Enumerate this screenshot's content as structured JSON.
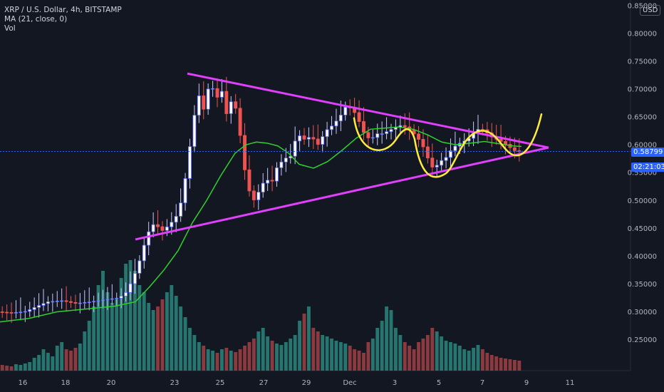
{
  "legend": {
    "title": "XRP / U.S. Dollar, 4h, BITSTAMP",
    "ma": "MA (21, close, 0)",
    "vol": "Vol"
  },
  "currency": "USD",
  "price_label": "0.58799",
  "countdown": "02:21:03",
  "chart_data": {
    "type": "candlestick",
    "symbol": "XRP / U.S. Dollar",
    "interval": "4h",
    "exchange": "BITSTAMP",
    "y_axis": {
      "ticks": [
        "0.85000",
        "0.80000",
        "0.75000",
        "0.70000",
        "0.65000",
        "0.60000",
        "0.55000",
        "0.50000",
        "0.45000",
        "0.40000",
        "0.35000",
        "0.30000",
        "0.25000"
      ],
      "range": [
        0.22,
        0.855
      ]
    },
    "x_axis": {
      "ticks": [
        "16",
        "18",
        "20",
        "23",
        "25",
        "27",
        "29",
        "Dec",
        "3",
        "5",
        "7",
        "9",
        "11"
      ]
    },
    "price_path": [
      [
        0,
        0.3
      ],
      [
        20,
        0.298
      ],
      [
        40,
        0.301
      ],
      [
        55,
        0.31
      ],
      [
        70,
        0.318
      ],
      [
        90,
        0.32
      ],
      [
        110,
        0.315
      ],
      [
        130,
        0.318
      ],
      [
        150,
        0.322
      ],
      [
        170,
        0.325
      ],
      [
        180,
        0.335
      ],
      [
        190,
        0.36
      ],
      [
        200,
        0.395
      ],
      [
        210,
        0.44
      ],
      [
        220,
        0.46
      ],
      [
        230,
        0.445
      ],
      [
        240,
        0.455
      ],
      [
        250,
        0.47
      ],
      [
        258,
        0.5
      ],
      [
        266,
        0.56
      ],
      [
        274,
        0.64
      ],
      [
        282,
        0.69
      ],
      [
        290,
        0.66
      ],
      [
        298,
        0.72
      ],
      [
        306,
        0.68
      ],
      [
        314,
        0.7
      ],
      [
        322,
        0.65
      ],
      [
        330,
        0.69
      ],
      [
        338,
        0.64
      ],
      [
        346,
        0.56
      ],
      [
        352,
        0.52
      ],
      [
        360,
        0.5
      ],
      [
        368,
        0.52
      ],
      [
        376,
        0.54
      ],
      [
        384,
        0.53
      ],
      [
        392,
        0.56
      ],
      [
        402,
        0.575
      ],
      [
        412,
        0.58
      ],
      [
        420,
        0.62
      ],
      [
        430,
        0.61
      ],
      [
        440,
        0.615
      ],
      [
        450,
        0.6
      ],
      [
        460,
        0.625
      ],
      [
        470,
        0.635
      ],
      [
        480,
        0.65
      ],
      [
        490,
        0.672
      ],
      [
        500,
        0.66
      ],
      [
        508,
        0.64
      ],
      [
        516,
        0.615
      ],
      [
        524,
        0.61
      ],
      [
        532,
        0.62
      ],
      [
        540,
        0.62
      ],
      [
        548,
        0.625
      ],
      [
        556,
        0.63
      ],
      [
        564,
        0.635
      ],
      [
        572,
        0.632
      ],
      [
        580,
        0.625
      ],
      [
        588,
        0.615
      ],
      [
        596,
        0.6
      ],
      [
        604,
        0.575
      ],
      [
        612,
        0.555
      ],
      [
        620,
        0.57
      ],
      [
        628,
        0.575
      ],
      [
        636,
        0.59
      ],
      [
        644,
        0.6
      ],
      [
        652,
        0.605
      ],
      [
        660,
        0.61
      ],
      [
        668,
        0.62
      ],
      [
        676,
        0.63
      ],
      [
        684,
        0.625
      ],
      [
        692,
        0.615
      ],
      [
        700,
        0.61
      ],
      [
        708,
        0.605
      ],
      [
        716,
        0.598
      ],
      [
        724,
        0.59
      ],
      [
        732,
        0.588
      ]
    ],
    "ma21": [
      [
        0,
        0.282
      ],
      [
        40,
        0.288
      ],
      [
        80,
        0.3
      ],
      [
        120,
        0.305
      ],
      [
        160,
        0.31
      ],
      [
        190,
        0.318
      ],
      [
        210,
        0.345
      ],
      [
        230,
        0.375
      ],
      [
        250,
        0.41
      ],
      [
        270,
        0.46
      ],
      [
        290,
        0.5
      ],
      [
        310,
        0.545
      ],
      [
        330,
        0.585
      ],
      [
        345,
        0.6
      ],
      [
        360,
        0.605
      ],
      [
        375,
        0.603
      ],
      [
        390,
        0.598
      ],
      [
        405,
        0.585
      ],
      [
        420,
        0.565
      ],
      [
        440,
        0.558
      ],
      [
        460,
        0.57
      ],
      [
        480,
        0.59
      ],
      [
        500,
        0.612
      ],
      [
        520,
        0.628
      ],
      [
        540,
        0.63
      ],
      [
        560,
        0.632
      ],
      [
        580,
        0.628
      ],
      [
        600,
        0.618
      ],
      [
        620,
        0.605
      ],
      [
        640,
        0.6
      ],
      [
        660,
        0.603
      ],
      [
        680,
        0.606
      ],
      [
        700,
        0.602
      ],
      [
        720,
        0.598
      ],
      [
        732,
        0.597
      ]
    ],
    "volume_heights": [
      8,
      7,
      6,
      9,
      8,
      10,
      12,
      18,
      22,
      30,
      25,
      20,
      35,
      40,
      30,
      28,
      32,
      38,
      55,
      70,
      90,
      120,
      140,
      110,
      95,
      100,
      130,
      150,
      155,
      140,
      120,
      110,
      95,
      85,
      90,
      100,
      110,
      120,
      105,
      90,
      75,
      60,
      50,
      40,
      35,
      30,
      28,
      25,
      30,
      32,
      28,
      26,
      30,
      35,
      40,
      45,
      55,
      60,
      48,
      42,
      38,
      36,
      40,
      45,
      50,
      70,
      80,
      90,
      60,
      55,
      50,
      48,
      45,
      42,
      40,
      38,
      35,
      30,
      28,
      25,
      40,
      45,
      60,
      70,
      90,
      85,
      60,
      50,
      40,
      35,
      30,
      40,
      45,
      50,
      60,
      55,
      48,
      42,
      40,
      38,
      35,
      30,
      28,
      32,
      36,
      30,
      25,
      22,
      20,
      18,
      17,
      16,
      15,
      14
    ]
  },
  "annotations": {
    "triangle_color": "#e040fb",
    "curve_color": "#ffeb3b",
    "ma_color": "#2ed12e",
    "up_color": "#ffffff",
    "up_border": "#5b6bff",
    "down_color": "#ef5350",
    "vol_up": "#26766f",
    "vol_down": "#8b3a3f"
  }
}
